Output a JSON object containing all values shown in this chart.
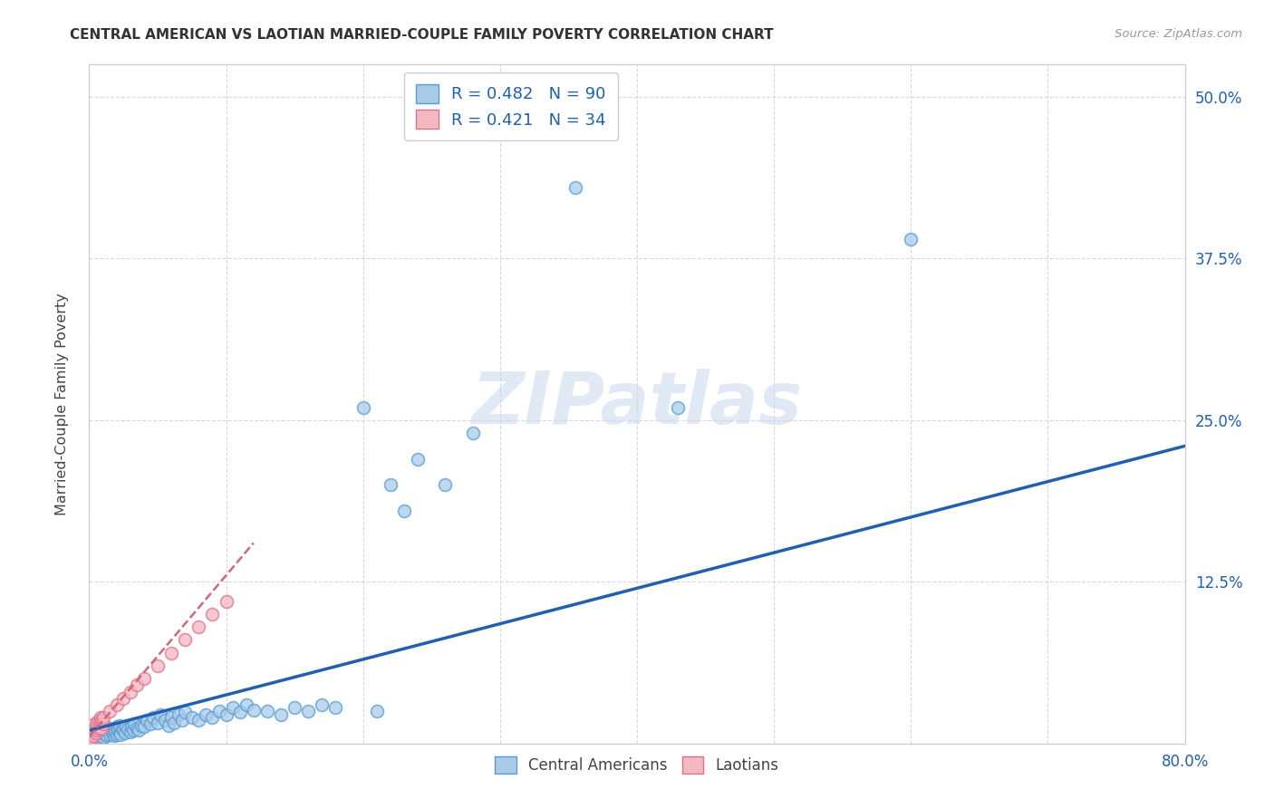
{
  "title": "CENTRAL AMERICAN VS LAOTIAN MARRIED-COUPLE FAMILY POVERTY CORRELATION CHART",
  "source": "Source: ZipAtlas.com",
  "ylabel": "Married-Couple Family Poverty",
  "xlim": [
    0.0,
    0.8
  ],
  "ylim": [
    0.0,
    0.525
  ],
  "yticks": [
    0.0,
    0.125,
    0.25,
    0.375,
    0.5
  ],
  "ytick_labels_right": [
    "",
    "12.5%",
    "25.0%",
    "37.5%",
    "50.0%"
  ],
  "xticks": [
    0.0,
    0.1,
    0.2,
    0.3,
    0.4,
    0.5,
    0.6,
    0.7,
    0.8
  ],
  "xtick_labels": [
    "0.0%",
    "",
    "",
    "",
    "",
    "",
    "",
    "",
    "80.0%"
  ],
  "blue_scatter_color": "#a8cce8",
  "blue_edge_color": "#5b9bd5",
  "pink_scatter_color": "#f4b8c1",
  "pink_edge_color": "#e07090",
  "blue_line_color": "#2060b0",
  "pink_line_color": "#d06878",
  "grid_color": "#d8d8d8",
  "bg_color": "#ffffff",
  "watermark_text": "ZIPatlas",
  "R_blue": "0.482",
  "N_blue": "90",
  "R_pink": "0.421",
  "N_pink": "34",
  "label_blue": "Central Americans",
  "label_pink": "Laotians",
  "axis_label_color": "#2060b0",
  "text_color_dark": "#444444",
  "blue_x": [
    0.002,
    0.003,
    0.003,
    0.004,
    0.004,
    0.005,
    0.005,
    0.005,
    0.006,
    0.006,
    0.007,
    0.007,
    0.008,
    0.008,
    0.009,
    0.009,
    0.01,
    0.01,
    0.01,
    0.011,
    0.011,
    0.012,
    0.012,
    0.013,
    0.013,
    0.014,
    0.015,
    0.015,
    0.016,
    0.017,
    0.018,
    0.018,
    0.019,
    0.02,
    0.02,
    0.021,
    0.022,
    0.022,
    0.023,
    0.024,
    0.025,
    0.026,
    0.027,
    0.028,
    0.03,
    0.031,
    0.032,
    0.033,
    0.035,
    0.036,
    0.038,
    0.04,
    0.042,
    0.045,
    0.047,
    0.05,
    0.052,
    0.055,
    0.058,
    0.06,
    0.062,
    0.065,
    0.068,
    0.07,
    0.075,
    0.08,
    0.085,
    0.09,
    0.095,
    0.1,
    0.105,
    0.11,
    0.115,
    0.12,
    0.13,
    0.14,
    0.15,
    0.16,
    0.17,
    0.18,
    0.2,
    0.21,
    0.22,
    0.23,
    0.24,
    0.26,
    0.28,
    0.355,
    0.43,
    0.6
  ],
  "blue_y": [
    0.005,
    0.008,
    0.012,
    0.006,
    0.01,
    0.004,
    0.008,
    0.012,
    0.007,
    0.011,
    0.005,
    0.01,
    0.008,
    0.013,
    0.006,
    0.012,
    0.005,
    0.009,
    0.014,
    0.008,
    0.013,
    0.007,
    0.012,
    0.006,
    0.011,
    0.009,
    0.007,
    0.012,
    0.01,
    0.008,
    0.006,
    0.011,
    0.009,
    0.007,
    0.013,
    0.01,
    0.008,
    0.014,
    0.007,
    0.012,
    0.01,
    0.008,
    0.013,
    0.011,
    0.009,
    0.013,
    0.01,
    0.015,
    0.012,
    0.01,
    0.014,
    0.013,
    0.018,
    0.015,
    0.02,
    0.016,
    0.022,
    0.018,
    0.014,
    0.02,
    0.016,
    0.022,
    0.018,
    0.024,
    0.02,
    0.018,
    0.022,
    0.02,
    0.025,
    0.022,
    0.028,
    0.024,
    0.03,
    0.026,
    0.025,
    0.022,
    0.028,
    0.025,
    0.03,
    0.028,
    0.26,
    0.025,
    0.2,
    0.18,
    0.22,
    0.2,
    0.24,
    0.43,
    0.26,
    0.39
  ],
  "pink_x": [
    0.001,
    0.001,
    0.002,
    0.002,
    0.002,
    0.003,
    0.003,
    0.003,
    0.004,
    0.004,
    0.005,
    0.005,
    0.006,
    0.006,
    0.007,
    0.007,
    0.008,
    0.008,
    0.009,
    0.009,
    0.01,
    0.01,
    0.015,
    0.02,
    0.025,
    0.03,
    0.035,
    0.04,
    0.05,
    0.06,
    0.07,
    0.08,
    0.09,
    0.1
  ],
  "pink_y": [
    0.003,
    0.008,
    0.004,
    0.01,
    0.005,
    0.008,
    0.012,
    0.006,
    0.01,
    0.015,
    0.008,
    0.013,
    0.01,
    0.015,
    0.012,
    0.018,
    0.015,
    0.02,
    0.012,
    0.018,
    0.015,
    0.02,
    0.025,
    0.03,
    0.035,
    0.04,
    0.045,
    0.05,
    0.06,
    0.07,
    0.08,
    0.09,
    0.1,
    0.11
  ],
  "blue_line_x": [
    0.0,
    0.8
  ],
  "blue_line_y": [
    0.01,
    0.23
  ],
  "pink_line_x": [
    0.0,
    0.12
  ],
  "pink_line_y": [
    0.005,
    0.155
  ]
}
